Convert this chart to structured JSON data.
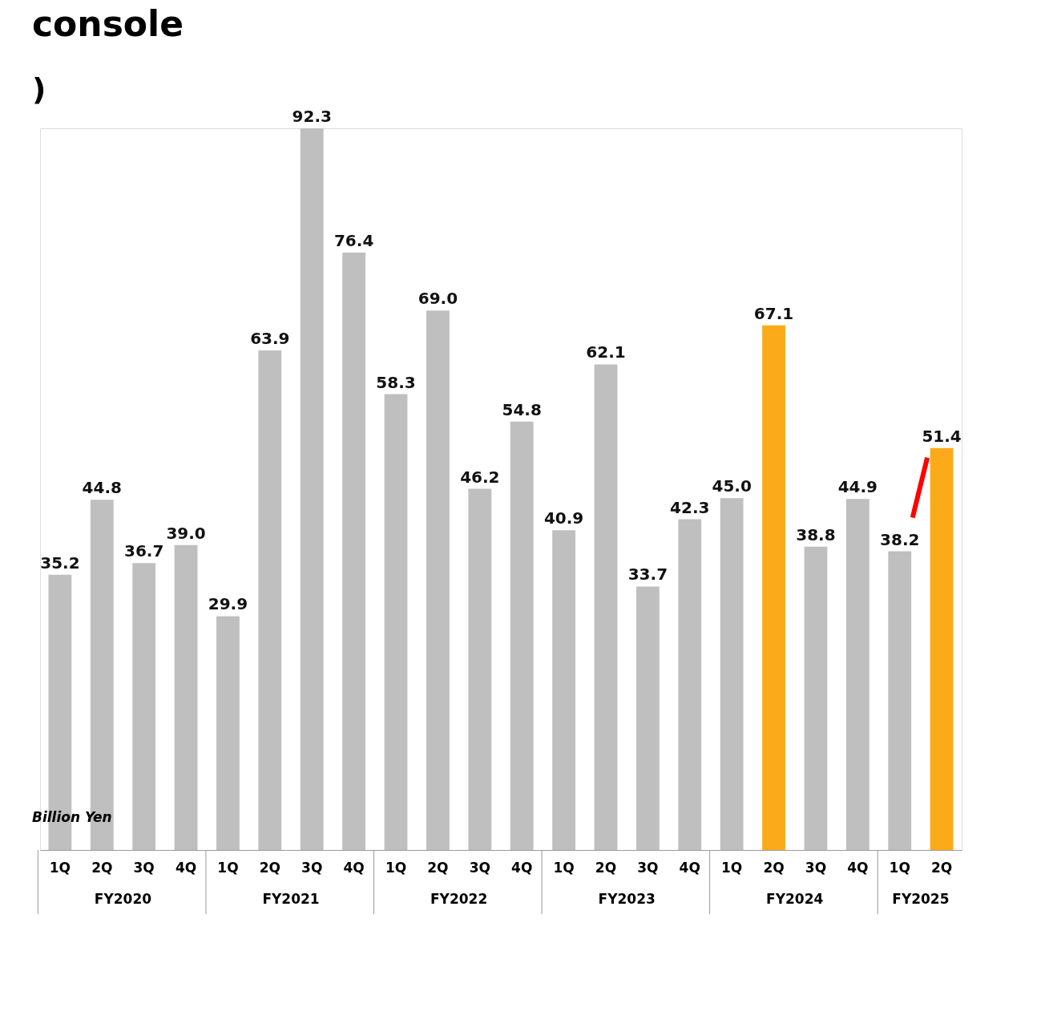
{
  "chart_data": {
    "type": "bar",
    "title": "console",
    "subtitle": ")",
    "ylabel": "Billion Yen",
    "categories": [
      "1Q",
      "2Q",
      "3Q",
      "4Q",
      "1Q",
      "2Q",
      "3Q",
      "4Q",
      "1Q",
      "2Q",
      "3Q",
      "4Q",
      "1Q",
      "2Q",
      "3Q",
      "4Q",
      "1Q",
      "2Q",
      "3Q",
      "4Q",
      "1Q",
      "2Q"
    ],
    "values": [
      35.2,
      44.8,
      36.7,
      39.0,
      29.9,
      63.9,
      92.3,
      76.4,
      58.3,
      69.0,
      46.2,
      54.8,
      40.9,
      62.1,
      33.7,
      42.3,
      45.0,
      67.1,
      38.8,
      44.9,
      38.2,
      51.4
    ],
    "colors": [
      "#bfbfbf",
      "#bfbfbf",
      "#bfbfbf",
      "#bfbfbf",
      "#bfbfbf",
      "#bfbfbf",
      "#bfbfbf",
      "#bfbfbf",
      "#bfbfbf",
      "#bfbfbf",
      "#bfbfbf",
      "#bfbfbf",
      "#bfbfbf",
      "#bfbfbf",
      "#bfbfbf",
      "#bfbfbf",
      "#bfbfbf",
      "#fbaa19",
      "#bfbfbf",
      "#bfbfbf",
      "#bfbfbf",
      "#fbaa19"
    ],
    "annotations": [
      "FY2020",
      "FY2021",
      "FY2022",
      "FY2023",
      "FY2024",
      "FY2025"
    ],
    "value_labels": [
      "35.2",
      "44.8",
      "36.7",
      "39.0",
      "29.9",
      "63.9",
      "92.3",
      "76.4",
      "58.3",
      "69.0",
      "46.2",
      "54.8",
      "40.9",
      "62.1",
      "33.7",
      "42.3",
      "45.0",
      "67.1",
      "38.8",
      "44.9",
      "38.2",
      "51.4"
    ],
    "tick_labels": "x"
  }
}
